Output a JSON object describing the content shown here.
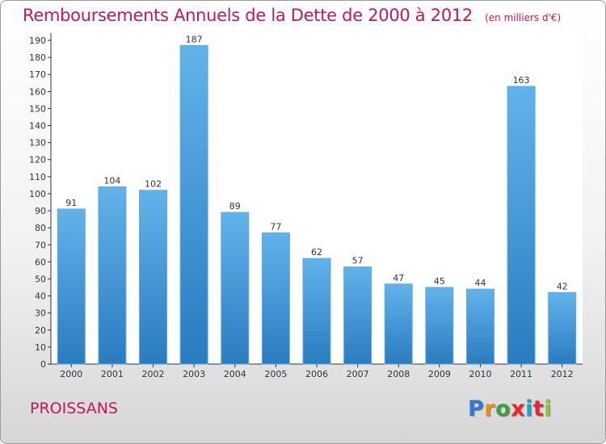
{
  "title": "Remboursements Annuels de la Dette de 2000 à 2012",
  "unit": "(en milliers d'€)",
  "city": "PROISSANS",
  "logo_text": "Proxiti",
  "colors": {
    "title": "#c2185b",
    "bar_top": "#62b2ea",
    "bar_bottom": "#2a7cc0",
    "logo": [
      "#2e7bd6",
      "#f08a1c",
      "#3aa040",
      "#e8262b",
      "#1aa3c9",
      "#e8262b",
      "#8bc43f"
    ]
  },
  "chart_data": {
    "type": "bar",
    "title": "Remboursements Annuels de la Dette de 2000 à 2012",
    "ylabel": "",
    "xlabel": "",
    "categories": [
      "2000",
      "2001",
      "2002",
      "2003",
      "2004",
      "2005",
      "2006",
      "2007",
      "2008",
      "2009",
      "2010",
      "2011",
      "2012"
    ],
    "values": [
      91,
      104,
      102,
      187,
      89,
      77,
      62,
      57,
      47,
      45,
      44,
      163,
      42
    ],
    "ylim": [
      0,
      190
    ],
    "ytick_step": 10,
    "grid": false
  }
}
